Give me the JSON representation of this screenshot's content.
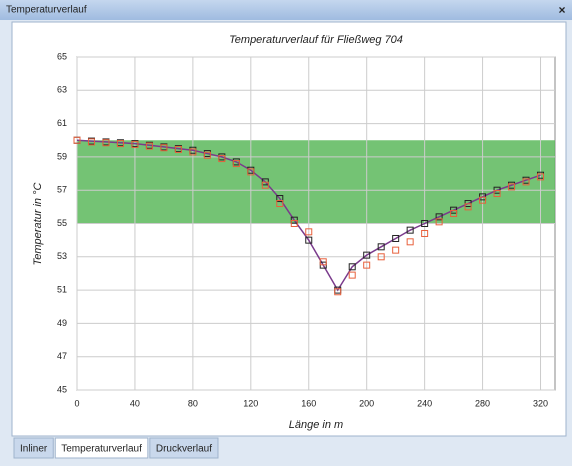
{
  "window": {
    "title": "Temperaturverlauf",
    "close": "×",
    "tabs": [
      "Inliner",
      "Temperaturverlauf",
      "Druckverlauf"
    ],
    "active_tab": 1
  },
  "chart_data": {
    "type": "line",
    "title": "Temperaturverlauf für Fließweg 704",
    "x_label": "Länge in m",
    "y_label": "Temperatur in °C",
    "x": [
      0,
      10,
      20,
      30,
      40,
      50,
      60,
      70,
      80,
      90,
      100,
      110,
      120,
      130,
      140,
      150,
      160,
      170,
      180,
      190,
      200,
      210,
      220,
      230,
      240,
      250,
      260,
      270,
      280,
      290,
      300,
      310,
      320
    ],
    "series": [
      {
        "color": "#7a3a8c",
        "line": true,
        "marker_color": "#222222",
        "values": [
          60.0,
          59.95,
          59.9,
          59.85,
          59.8,
          59.7,
          59.6,
          59.5,
          59.4,
          59.2,
          59.0,
          58.7,
          58.2,
          57.5,
          56.5,
          55.2,
          54.0,
          52.5,
          51.0,
          52.4,
          53.1,
          53.6,
          54.1,
          54.6,
          55.0,
          55.4,
          55.8,
          56.2,
          56.6,
          57.0,
          57.3,
          57.6,
          57.9
        ]
      },
      {
        "color": "#e8603c",
        "line": false,
        "marker_color": "#e8603c",
        "values": [
          60.0,
          59.9,
          59.85,
          59.8,
          59.75,
          59.65,
          59.55,
          59.45,
          59.3,
          59.1,
          58.9,
          58.6,
          58.1,
          57.3,
          56.2,
          55.0,
          54.5,
          52.7,
          50.9,
          51.9,
          52.5,
          53.0,
          53.4,
          53.9,
          54.4,
          55.1,
          55.6,
          56.0,
          56.4,
          56.8,
          57.2,
          57.5,
          57.8
        ]
      }
    ],
    "band": {
      "from": 55,
      "to": 60,
      "color": "#5cb85c"
    },
    "xlim": [
      0,
      330
    ],
    "xticks": [
      0,
      40,
      80,
      120,
      160,
      200,
      240,
      280,
      320
    ],
    "ylim": [
      45,
      65
    ],
    "yticks": [
      45,
      47,
      49,
      51,
      53,
      55,
      57,
      59,
      61,
      63,
      65
    ],
    "grid": true
  }
}
